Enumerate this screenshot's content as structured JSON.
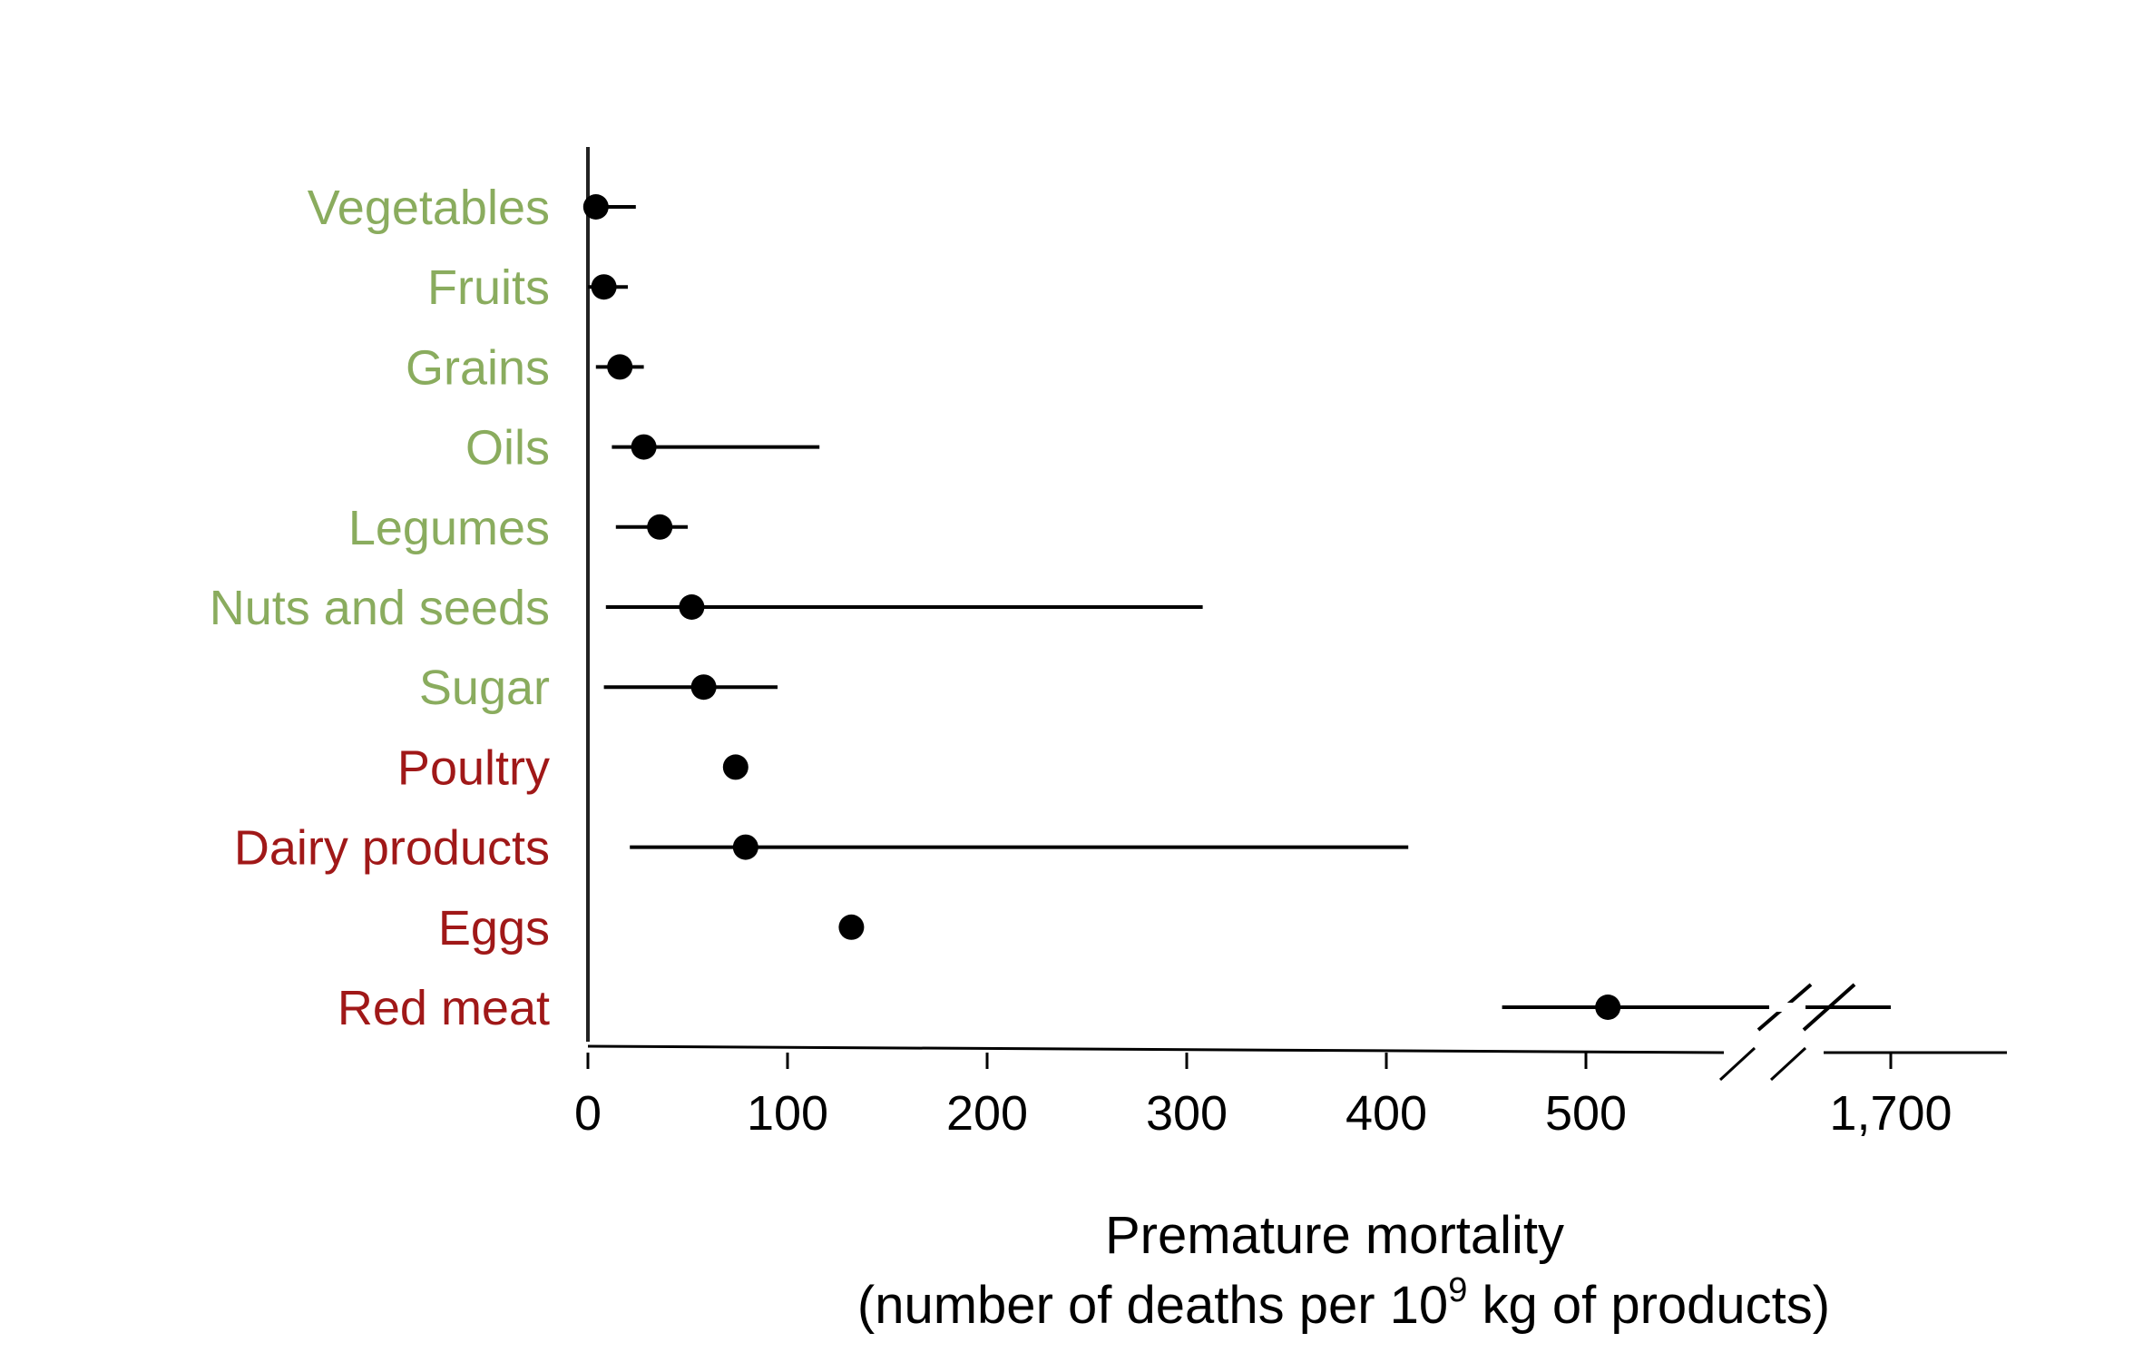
{
  "chart_data": {
    "type": "scatter",
    "orientation": "horizontal",
    "title": "",
    "xlabel": {
      "line1": "Premature mortality",
      "line2_before_exp": "(number of deaths per 10",
      "line2_exp": "9",
      "line2_after_exp": " kg of products)"
    },
    "ylabel": "",
    "xlim": [
      0,
      550
    ],
    "x_axis_break": true,
    "xticks": [
      {
        "value": 0,
        "label": "0"
      },
      {
        "value": 100,
        "label": "100"
      },
      {
        "value": 200,
        "label": "200"
      },
      {
        "value": 300,
        "label": "300"
      },
      {
        "value": 400,
        "label": "400"
      },
      {
        "value": 500,
        "label": "500"
      },
      {
        "value": 1700,
        "label": "1,700"
      }
    ],
    "grid": false,
    "legend": "none",
    "colors": {
      "plant": "#8aac5e",
      "animal": "#a01818",
      "mark": "#000000"
    },
    "points": [
      {
        "category": "Vegetables",
        "group": "plant",
        "value": 4,
        "low": 0,
        "high": 24
      },
      {
        "category": "Fruits",
        "group": "plant",
        "value": 8,
        "low": 0,
        "high": 20
      },
      {
        "category": "Grains",
        "group": "plant",
        "value": 16,
        "low": 4,
        "high": 28
      },
      {
        "category": "Oils",
        "group": "plant",
        "value": 28,
        "low": 12,
        "high": 116
      },
      {
        "category": "Legumes",
        "group": "plant",
        "value": 36,
        "low": 14,
        "high": 50
      },
      {
        "category": "Nuts and seeds",
        "group": "plant",
        "value": 52,
        "low": 9,
        "high": 308
      },
      {
        "category": "Sugar",
        "group": "plant",
        "value": 58,
        "low": 8,
        "high": 95
      },
      {
        "category": "Poultry",
        "group": "animal",
        "value": 74
      },
      {
        "category": "Dairy products",
        "group": "animal",
        "value": 79,
        "low": 21,
        "high": 411
      },
      {
        "category": "Eggs",
        "group": "animal",
        "value": 132
      },
      {
        "category": "Red meat",
        "group": "animal",
        "value": 511,
        "low": 458,
        "high": 1700
      }
    ]
  }
}
